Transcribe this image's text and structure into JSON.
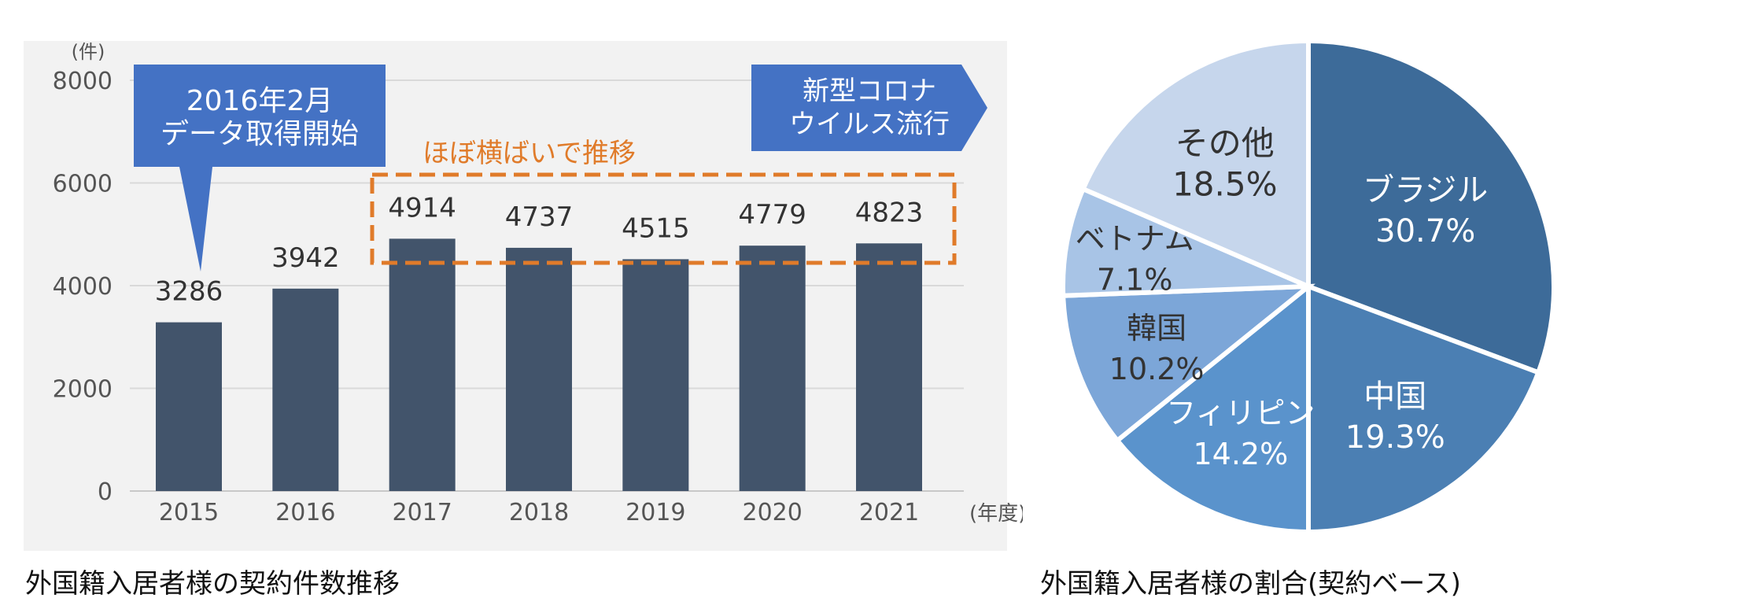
{
  "colors": {
    "panel_bg": "#f2f2f2",
    "bar": "#42546b",
    "axis_text": "#555555",
    "callout_blue": "#4472c4",
    "highlight_orange": "#e07b2a",
    "pie_brazil": "#3d6b99",
    "pie_china": "#4b7fb3",
    "pie_philippines": "#5a93cc",
    "pie_korea": "#7ca6d8",
    "pie_vietnam": "#a8c4e6",
    "pie_other": "#c6d6ec"
  },
  "chart_data": [
    {
      "type": "bar",
      "title": "外国籍入居者様の契約件数推移",
      "ylabel": "(件)",
      "xlabel": "(年度)",
      "ylim": [
        0,
        8000
      ],
      "yticks": [
        0,
        2000,
        4000,
        6000,
        8000
      ],
      "categories": [
        "2015",
        "2016",
        "2017",
        "2018",
        "2019",
        "2020",
        "2021"
      ],
      "values": [
        3286,
        3942,
        4914,
        4737,
        4515,
        4779,
        4823
      ],
      "annotations": {
        "start_callout": "2016年2月\nデータ取得開始",
        "covid_callout": "新型コロナ\nウイルス流行",
        "flat_label": "ほぼ横ばいで推移"
      }
    },
    {
      "type": "pie",
      "title": "外国籍入居者様の割合(契約ベース)",
      "slices": [
        {
          "label": "ブラジル",
          "value": 30.7,
          "text": "30.7%",
          "color_key": "pie_brazil"
        },
        {
          "label": "中国",
          "value": 19.3,
          "text": "19.3%",
          "color_key": "pie_china"
        },
        {
          "label": "フィリピン",
          "value": 14.2,
          "text": "14.2%",
          "color_key": "pie_philippines"
        },
        {
          "label": "韓国",
          "value": 10.2,
          "text": "10.2%",
          "color_key": "pie_korea"
        },
        {
          "label": "ベトナム",
          "value": 7.1,
          "text": "7.1%",
          "color_key": "pie_vietnam"
        },
        {
          "label": "その他",
          "value": 18.5,
          "text": "18.5%",
          "color_key": "pie_other"
        }
      ]
    }
  ]
}
